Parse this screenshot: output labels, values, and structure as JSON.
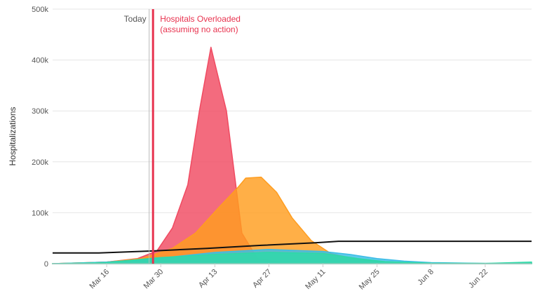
{
  "chart_data": {
    "type": "area",
    "title": "",
    "xlabel": "",
    "ylabel": "Hospitalizations",
    "x_ticks": [
      "Mar 16",
      "Mar 30",
      "Apr 13",
      "Apr 27",
      "May 11",
      "May 25",
      "Jun 8",
      "Jun 22"
    ],
    "x_tick_dates": [
      "2020-03-16",
      "2020-03-30",
      "2020-04-13",
      "2020-04-27",
      "2020-05-11",
      "2020-05-25",
      "2020-06-08",
      "2020-06-22"
    ],
    "x_range": [
      "2020-03-02",
      "2020-07-04"
    ],
    "y_ticks": [
      "0",
      "100k",
      "200k",
      "300k",
      "400k",
      "500k"
    ],
    "ylim": [
      0,
      500000
    ],
    "grid": true,
    "annotations": {
      "today": {
        "label": "Today",
        "date": "2020-03-27"
      },
      "overloaded": {
        "line1": "Hospitals Overloaded",
        "line2": "(assuming no action)",
        "date": "2020-03-28"
      }
    },
    "series": [
      {
        "color": "#f04a61",
        "kind": "area",
        "points": [
          [
            "2020-03-02",
            0
          ],
          [
            "2020-03-16",
            3000
          ],
          [
            "2020-03-24",
            10000
          ],
          [
            "2020-03-29",
            25000
          ],
          [
            "2020-04-02",
            70000
          ],
          [
            "2020-04-06",
            155000
          ],
          [
            "2020-04-09",
            300000
          ],
          [
            "2020-04-12",
            425000
          ],
          [
            "2020-04-16",
            300000
          ],
          [
            "2020-04-20",
            60000
          ],
          [
            "2020-04-24",
            10000
          ],
          [
            "2020-05-01",
            1000
          ],
          [
            "2020-07-04",
            0
          ]
        ]
      },
      {
        "color": "#ff9d1f",
        "kind": "area",
        "points": [
          [
            "2020-03-02",
            0
          ],
          [
            "2020-03-16",
            3000
          ],
          [
            "2020-03-25",
            10000
          ],
          [
            "2020-04-02",
            30000
          ],
          [
            "2020-04-08",
            60000
          ],
          [
            "2020-04-14",
            110000
          ],
          [
            "2020-04-19",
            150000
          ],
          [
            "2020-04-21",
            168000
          ],
          [
            "2020-04-25",
            170000
          ],
          [
            "2020-04-29",
            140000
          ],
          [
            "2020-05-03",
            90000
          ],
          [
            "2020-05-08",
            45000
          ],
          [
            "2020-05-13",
            20000
          ],
          [
            "2020-05-20",
            8000
          ],
          [
            "2020-06-01",
            1000
          ],
          [
            "2020-07-04",
            0
          ]
        ]
      },
      {
        "color": "#3bbde6",
        "kind": "area",
        "points": [
          [
            "2020-03-02",
            0
          ],
          [
            "2020-03-16",
            3000
          ],
          [
            "2020-03-29",
            10000
          ],
          [
            "2020-04-13",
            22000
          ],
          [
            "2020-04-27",
            28000
          ],
          [
            "2020-05-11",
            24000
          ],
          [
            "2020-05-18",
            18000
          ],
          [
            "2020-05-25",
            10000
          ],
          [
            "2020-06-01",
            5000
          ],
          [
            "2020-06-08",
            2000
          ],
          [
            "2020-06-22",
            500
          ],
          [
            "2020-07-04",
            0
          ]
        ]
      },
      {
        "color": "#2dd9a8",
        "kind": "area",
        "points": [
          [
            "2020-03-02",
            0
          ],
          [
            "2020-03-16",
            2000
          ],
          [
            "2020-03-24",
            8000
          ],
          [
            "2020-03-30",
            12000
          ],
          [
            "2020-04-13",
            18000
          ],
          [
            "2020-04-27",
            22000
          ],
          [
            "2020-05-11",
            20000
          ],
          [
            "2020-05-20",
            10000
          ],
          [
            "2020-05-27",
            4000
          ],
          [
            "2020-06-08",
            1000
          ],
          [
            "2020-06-22",
            500
          ],
          [
            "2020-07-04",
            3000
          ]
        ]
      },
      {
        "color": "#111111",
        "kind": "line",
        "points": [
          [
            "2020-03-02",
            21000
          ],
          [
            "2020-03-14",
            21000
          ],
          [
            "2020-03-28",
            25000
          ],
          [
            "2020-04-11",
            30000
          ],
          [
            "2020-04-25",
            36000
          ],
          [
            "2020-05-09",
            41000
          ],
          [
            "2020-05-15",
            44000
          ],
          [
            "2020-07-04",
            44000
          ]
        ]
      }
    ]
  }
}
